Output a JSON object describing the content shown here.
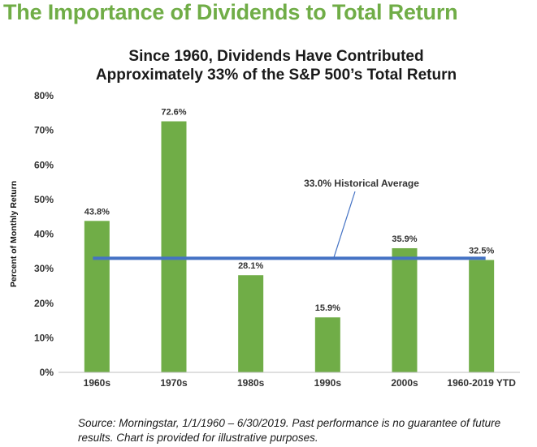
{
  "headline": "The Importance of Dividends to Total Return",
  "source": "Source: Morningstar, 1/1/1960 – 6/30/2019. Past performance is no guarantee of future results. Chart is provided for illustrative purposes.",
  "colors": {
    "headline": "#70ad47",
    "bar": "#70ad47",
    "average_line": "#4472c4"
  },
  "chart_data": {
    "type": "bar",
    "title_lines": [
      "Since 1960, Dividends Have Contributed",
      "Approximately 33% of the S&P 500’s Total Return"
    ],
    "ylabel": "Percent of Monthly Return",
    "xlabel": "",
    "categories": [
      "1960s",
      "1970s",
      "1980s",
      "1990s",
      "2000s",
      "1960-2019 YTD"
    ],
    "values": [
      43.8,
      72.6,
      28.1,
      15.9,
      35.9,
      32.5
    ],
    "data_labels": [
      "43.8%",
      "72.6%",
      "28.1%",
      "15.9%",
      "35.9%",
      "32.5%"
    ],
    "ylim": [
      0,
      80
    ],
    "yticks": [
      0,
      10,
      20,
      30,
      40,
      50,
      60,
      70,
      80
    ],
    "ytick_labels": [
      "0%",
      "10%",
      "20%",
      "30%",
      "40%",
      "50%",
      "60%",
      "70%",
      "80%"
    ],
    "grid": false,
    "reference_line": {
      "value": 33.0,
      "label": "33.0% Historical Average"
    }
  }
}
